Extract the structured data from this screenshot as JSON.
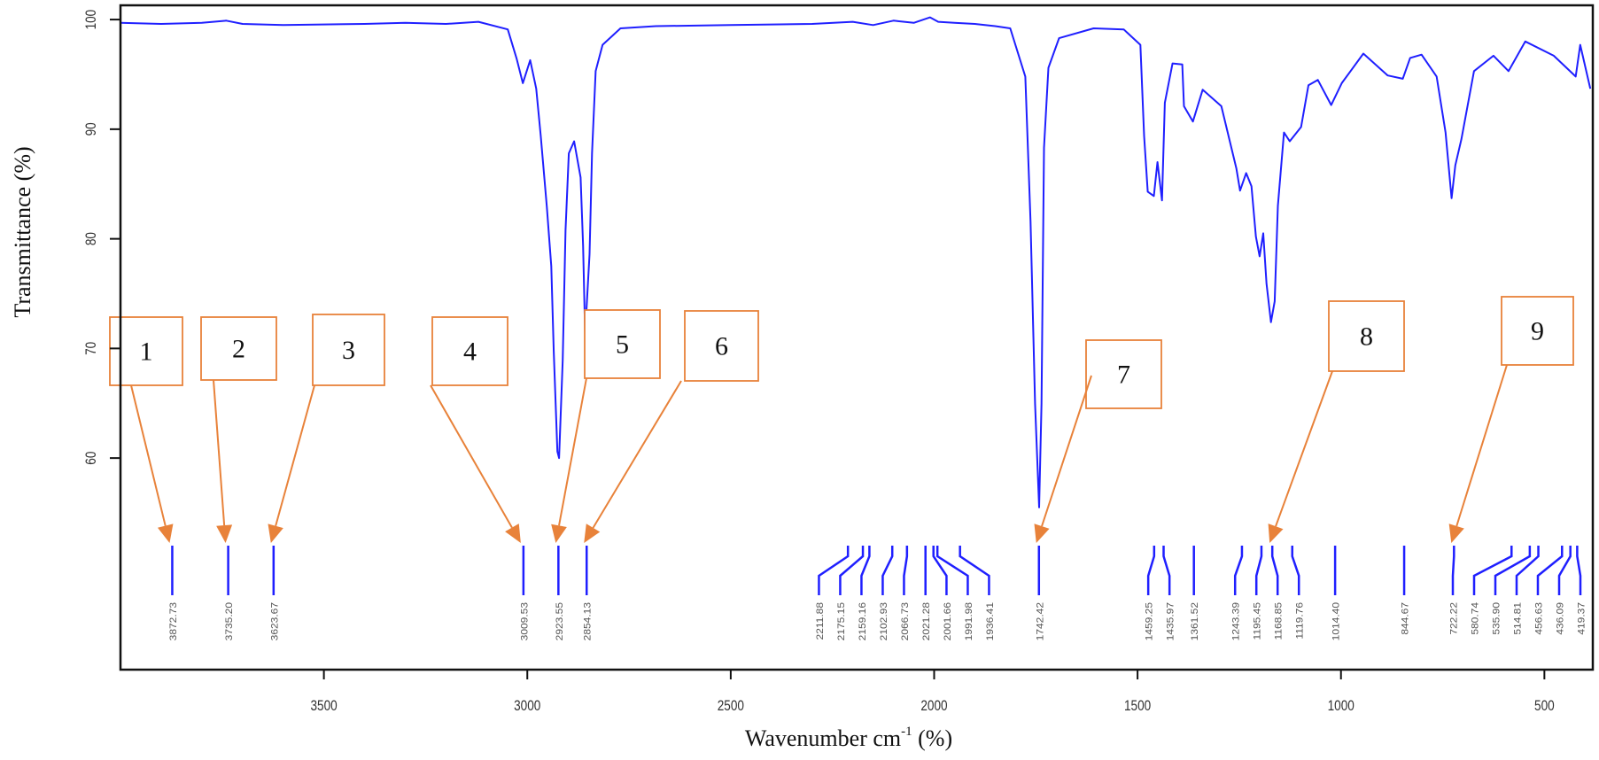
{
  "chart_data": {
    "type": "line",
    "title": "",
    "xlabel": "Wavenumber cm",
    "xlabel_superscript": "-1",
    "xlabel_suffix": " (%)",
    "ylabel": "Transmittance (%)",
    "xlim": [
      4000,
      381
    ],
    "ylim": [
      40.7,
      101.3
    ],
    "x_reversed": true,
    "grid": false,
    "x_ticks": [
      3500,
      3000,
      2500,
      2000,
      1500,
      1000,
      500
    ],
    "y_ticks": [
      60,
      70,
      80,
      90,
      100
    ],
    "colors": {
      "spectrum": "#1f1fff",
      "peak_marker": "#1f1fff",
      "annotation": "#e8823a",
      "axis": "#111111",
      "peak_label": "#555555"
    },
    "series": [
      {
        "points": [
          [
            4000,
            99.7
          ],
          [
            3900,
            99.6
          ],
          [
            3800,
            99.7
          ],
          [
            3740,
            99.9
          ],
          [
            3700,
            99.6
          ],
          [
            3600,
            99.5
          ],
          [
            3400,
            99.6
          ],
          [
            3300,
            99.7
          ],
          [
            3200,
            99.6
          ],
          [
            3120,
            99.8
          ],
          [
            3048,
            99.1
          ],
          [
            3026,
            96.4
          ],
          [
            3011,
            94.2
          ],
          [
            2993,
            96.3
          ],
          [
            2978,
            93.7
          ],
          [
            2967,
            89.4
          ],
          [
            2952,
            82.9
          ],
          [
            2941,
            77.5
          ],
          [
            2935,
            69.7
          ],
          [
            2926,
            60.6
          ],
          [
            2922,
            60
          ],
          [
            2913,
            68.9
          ],
          [
            2906,
            80.8
          ],
          [
            2898,
            87.8
          ],
          [
            2885,
            88.9
          ],
          [
            2869,
            85.6
          ],
          [
            2863,
            79.4
          ],
          [
            2858,
            71.3
          ],
          [
            2847,
            78.6
          ],
          [
            2841,
            87.8
          ],
          [
            2832,
            95.3
          ],
          [
            2815,
            97.7
          ],
          [
            2771,
            99.2
          ],
          [
            2684,
            99.4
          ],
          [
            2500,
            99.5
          ],
          [
            2300,
            99.6
          ],
          [
            2200,
            99.8
          ],
          [
            2150,
            99.5
          ],
          [
            2100,
            99.9
          ],
          [
            2050,
            99.7
          ],
          [
            2010,
            100.2
          ],
          [
            1990,
            99.8
          ],
          [
            1950,
            99.7
          ],
          [
            1900,
            99.6
          ],
          [
            1850,
            99.4
          ],
          [
            1813,
            99.2
          ],
          [
            1776,
            94.8
          ],
          [
            1763,
            81.6
          ],
          [
            1752,
            65
          ],
          [
            1742,
            55.5
          ],
          [
            1736,
            65
          ],
          [
            1730,
            88.3
          ],
          [
            1719,
            95.6
          ],
          [
            1693,
            98.3
          ],
          [
            1608,
            99.2
          ],
          [
            1534,
            99.1
          ],
          [
            1493,
            97.7
          ],
          [
            1484,
            89.4
          ],
          [
            1475,
            84.3
          ],
          [
            1460,
            83.9
          ],
          [
            1451,
            87
          ],
          [
            1440,
            83.5
          ],
          [
            1433,
            92.4
          ],
          [
            1414,
            96
          ],
          [
            1390,
            95.9
          ],
          [
            1386,
            92.1
          ],
          [
            1364,
            90.7
          ],
          [
            1340,
            93.6
          ],
          [
            1294,
            92.1
          ],
          [
            1257,
            86.4
          ],
          [
            1248,
            84.4
          ],
          [
            1233,
            86
          ],
          [
            1220,
            84.8
          ],
          [
            1209,
            80.2
          ],
          [
            1200,
            78.4
          ],
          [
            1191,
            80.5
          ],
          [
            1183,
            75.9
          ],
          [
            1172,
            72.4
          ],
          [
            1163,
            74.3
          ],
          [
            1155,
            83
          ],
          [
            1140,
            89.7
          ],
          [
            1126,
            88.9
          ],
          [
            1098,
            90.2
          ],
          [
            1080,
            94
          ],
          [
            1057,
            94.5
          ],
          [
            1024,
            92.2
          ],
          [
            998,
            94.2
          ],
          [
            945,
            96.9
          ],
          [
            885,
            94.9
          ],
          [
            848,
            94.6
          ],
          [
            830,
            96.5
          ],
          [
            802,
            96.8
          ],
          [
            765,
            94.8
          ],
          [
            743,
            89.7
          ],
          [
            728,
            83.7
          ],
          [
            719,
            86.7
          ],
          [
            704,
            89.1
          ],
          [
            673,
            95.3
          ],
          [
            625,
            96.7
          ],
          [
            588,
            95.3
          ],
          [
            547,
            98
          ],
          [
            477,
            96.7
          ],
          [
            423,
            94.8
          ],
          [
            412,
            97.7
          ],
          [
            387,
            93.7
          ]
        ]
      }
    ],
    "peaks": [
      "3872.73",
      "3735.20",
      "3623.67",
      "3009.53",
      "2923.55",
      "2854.13",
      "2211.88",
      "2175.15",
      "2159.16",
      "2102.93",
      "2066.73",
      "2021.28",
      "2001.66",
      "1991.98",
      "1936.41",
      "1742.42",
      "1459.25",
      "1435.97",
      "1361.52",
      "1243.39",
      "1195.45",
      "1168.85",
      "1119.76",
      "1014.40",
      "844.67",
      "722.22",
      "580.74",
      "535.90",
      "514.81",
      "456.63",
      "436.09",
      "419.37"
    ],
    "annotations": [
      {
        "label": "1",
        "peak": "3872.73"
      },
      {
        "label": "2",
        "peak": "3735.20"
      },
      {
        "label": "3",
        "peak": "3623.67"
      },
      {
        "label": "4",
        "peak": "3009.53"
      },
      {
        "label": "5",
        "peak": "2923.55"
      },
      {
        "label": "6",
        "peak": "2854.13"
      },
      {
        "label": "7",
        "peak": "1742.42"
      },
      {
        "label": "8",
        "peak": "1168.85"
      },
      {
        "label": "9",
        "peak": "722.22"
      }
    ]
  }
}
